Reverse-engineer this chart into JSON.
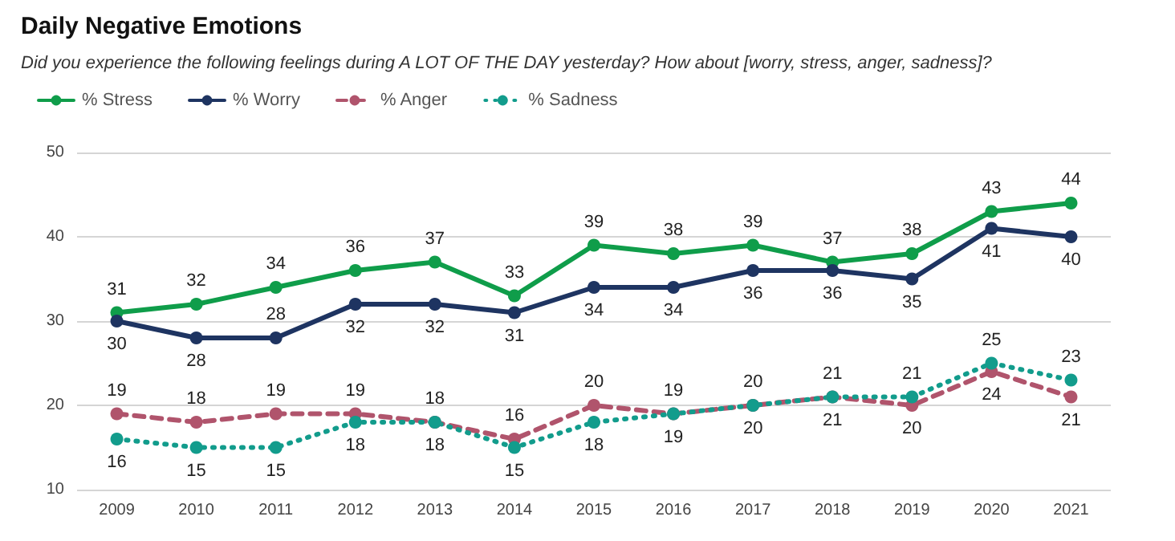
{
  "chart_data": {
    "type": "line",
    "title": "Daily Negative Emotions",
    "subtitle": "Did you experience the following feelings during A LOT OF THE DAY yesterday? How about [worry, stress, anger, sadness]?",
    "categories": [
      "2009",
      "2010",
      "2011",
      "2012",
      "2013",
      "2014",
      "2015",
      "2016",
      "2017",
      "2018",
      "2019",
      "2020",
      "2021"
    ],
    "series": [
      {
        "name": "% Stress",
        "color": "#0f9d4a",
        "line_style": "solid",
        "values": [
          31,
          32,
          34,
          36,
          37,
          33,
          39,
          38,
          39,
          37,
          38,
          43,
          44
        ]
      },
      {
        "name": "% Worry",
        "color": "#1e3461",
        "line_style": "solid",
        "values": [
          30,
          28,
          28,
          32,
          32,
          31,
          34,
          34,
          36,
          36,
          35,
          41,
          40
        ]
      },
      {
        "name": "% Anger",
        "color": "#b0546c",
        "line_style": "dashed",
        "values": [
          19,
          18,
          19,
          19,
          18,
          16,
          20,
          19,
          20,
          21,
          20,
          24,
          21
        ]
      },
      {
        "name": "% Sadness",
        "color": "#129c8c",
        "line_style": "dotted",
        "values": [
          16,
          15,
          15,
          18,
          18,
          15,
          18,
          19,
          20,
          21,
          21,
          25,
          23
        ]
      }
    ],
    "ylim": [
      10,
      50
    ],
    "yticks": [
      10,
      20,
      30,
      40,
      50
    ],
    "grid": "y",
    "legend": "top left",
    "marker": "circle",
    "data_labels": true
  }
}
